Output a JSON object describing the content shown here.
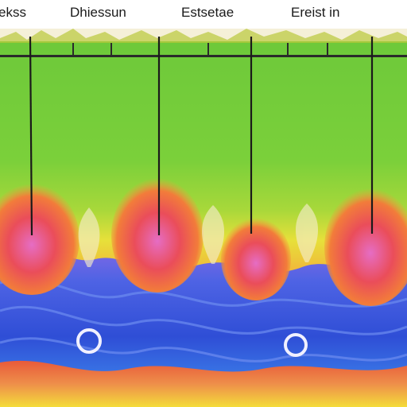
{
  "labels": {
    "l1": "ekss",
    "l2": "Dhiessun",
    "l3": "Estsetae",
    "l4": "Ereist in"
  },
  "colors": {
    "sky_top": "#67c93a",
    "sky_mid": "#86d23a",
    "yellow": "#e9e23a",
    "orange": "#f07a3a",
    "red": "#e8473a",
    "pink": "#e26cc4",
    "purple": "#8a6ae6",
    "blue": "#3a5fe0",
    "deep_blue": "#2e46c8",
    "ground": "#f2c23c"
  }
}
